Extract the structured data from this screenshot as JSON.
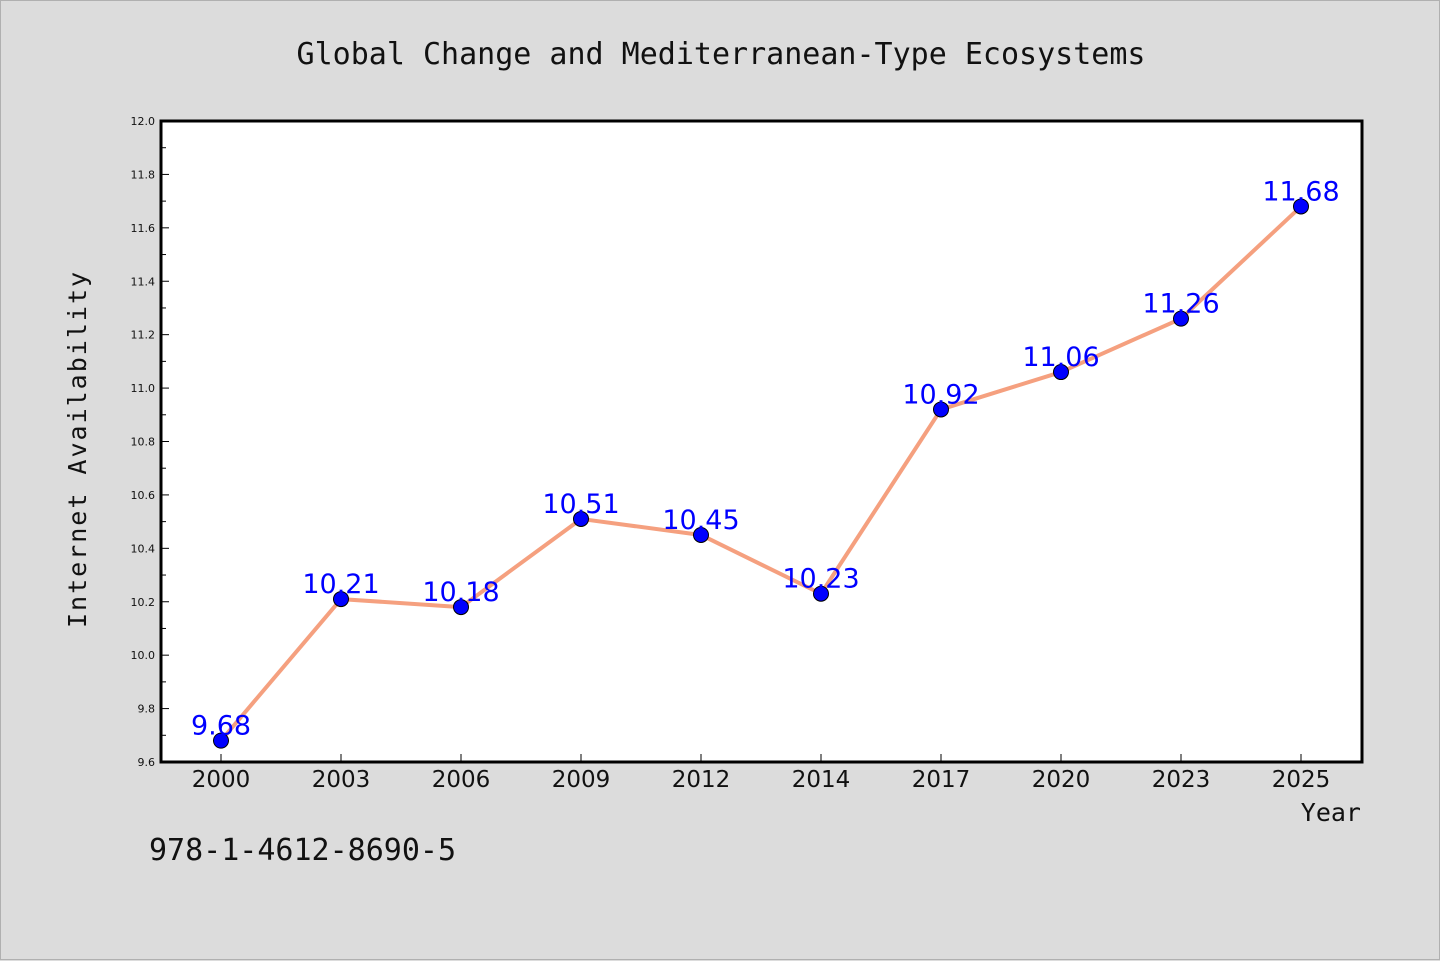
{
  "chart_data": {
    "type": "line",
    "title": "Global Change and Mediterranean-Type Ecosystems",
    "xlabel": "Year",
    "ylabel": "Internet Availability",
    "categories": [
      "2000",
      "2003",
      "2006",
      "2009",
      "2012",
      "2014",
      "2017",
      "2020",
      "2023",
      "2025"
    ],
    "series": [
      {
        "values": [
          9.68,
          10.21,
          10.18,
          10.51,
          10.45,
          10.23,
          10.92,
          11.06,
          11.26,
          11.68
        ],
        "labels": [
          "9.68",
          "10.21",
          "10.18",
          "10.51",
          "10.45",
          "10.23",
          "10.92",
          "11.06",
          "11.26",
          "11.68"
        ],
        "line_color": "#f5a07f",
        "marker_color": "#0000ff"
      }
    ],
    "ylim": [
      9.6,
      12.0
    ],
    "yticks": [
      "9.6",
      "9.8",
      "10.0",
      "10.2",
      "10.4",
      "10.6",
      "10.8",
      "11.0",
      "11.2",
      "11.4",
      "11.6",
      "11.8",
      "12.0"
    ],
    "grid": false,
    "legend": "none",
    "label_color": "#0000ff",
    "plot_background": "#ffffff",
    "page_background": "#dcdcdc"
  },
  "footer": {
    "isbn": "978-1-4612-8690-5"
  }
}
